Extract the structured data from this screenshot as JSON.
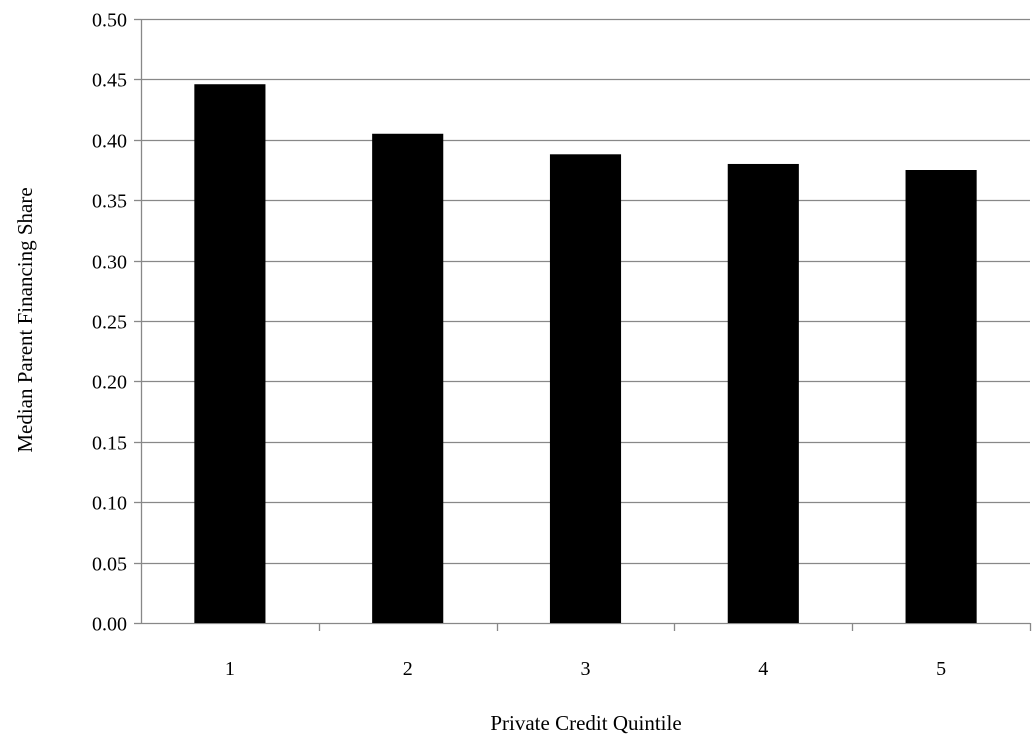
{
  "chart_data": {
    "type": "bar",
    "title": "",
    "xlabel": "Private Credit Quintile",
    "ylabel": "Median Parent Financing Share",
    "categories": [
      "1",
      "2",
      "3",
      "4",
      "5"
    ],
    "values": [
      0.446,
      0.405,
      0.388,
      0.38,
      0.375
    ],
    "ylim": [
      0,
      0.5
    ],
    "yticks": [
      "0.00",
      "0.05",
      "0.10",
      "0.15",
      "0.20",
      "0.25",
      "0.30",
      "0.35",
      "0.40",
      "0.45",
      "0.50"
    ],
    "grid": true,
    "legend": "none",
    "colors": {
      "bar": "#000000",
      "grid": "#888888",
      "axis": "#888888"
    }
  }
}
